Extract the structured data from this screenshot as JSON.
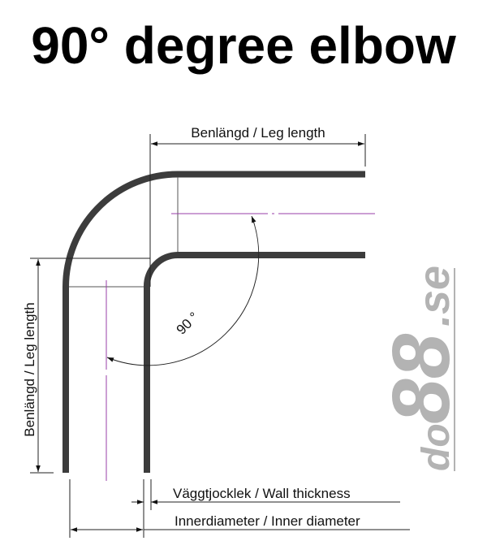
{
  "title": "90° degree elbow",
  "labels": {
    "leg_length_top": "Benlängd / Leg length",
    "leg_length_side": "Benlängd / Leg length",
    "angle": "90 °",
    "wall_thickness": "Väggtjocklek / Wall thickness",
    "inner_diameter": "Innerdiameter / Inner diameter"
  },
  "logo": {
    "text": "do88.se",
    "color": "#b3b3b3"
  },
  "colors": {
    "tube": "#3c3c3c",
    "centerline": "#9a3fa8",
    "dimension": "#222222"
  }
}
